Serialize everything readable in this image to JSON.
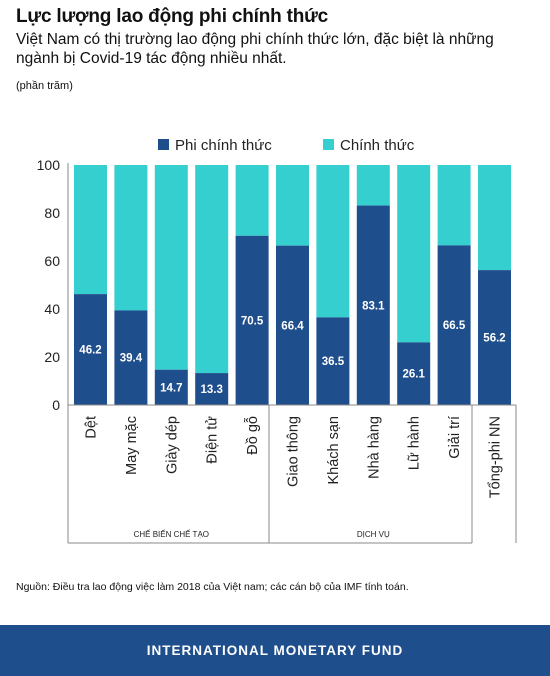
{
  "header": {
    "title": "Lực lượng lao động phi chính thức",
    "subtitle": "Việt Nam có thị trường lao động phi chính thức lớn, đặc biệt là những ngành bị Covid-19 tác động nhiều nhất.",
    "unit": "(phần trăm)"
  },
  "source": "Nguồn: Điều tra lao động việc làm 2018 của Việt nam; các cán bộ của IMF tính toán.",
  "footer": {
    "label": "INTERNATIONAL MONETARY FUND"
  },
  "colors": {
    "informal": "#1f4e8c",
    "formal": "#36cfd0"
  },
  "chart_data": {
    "type": "bar",
    "stacked": true,
    "categories": [
      "Dệt",
      "May mặc",
      "Giày dép",
      "Điện tử",
      "Đồ gỗ",
      "Giao thông",
      "Khách sạn",
      "Nhà hàng",
      "Lữ hành",
      "Giải trí",
      "Tổng-phi NN"
    ],
    "series": [
      {
        "name": "Phi chính thức",
        "values": [
          46.2,
          39.4,
          14.7,
          13.3,
          70.5,
          66.4,
          36.5,
          83.1,
          26.1,
          66.5,
          56.2
        ]
      },
      {
        "name": "Chính thức",
        "values": [
          53.8,
          60.6,
          85.3,
          86.7,
          29.5,
          33.6,
          63.5,
          16.9,
          73.9,
          33.5,
          43.8
        ]
      }
    ],
    "groups": [
      {
        "label": "CHẾ BIẾN CHẾ TẠO",
        "start": 0,
        "end": 4
      },
      {
        "label": "DỊCH VỤ",
        "start": 5,
        "end": 9
      }
    ],
    "yticks": [
      0,
      20,
      40,
      60,
      80,
      100
    ],
    "ylim": [
      0,
      100
    ],
    "legend": "top",
    "grid": false
  }
}
